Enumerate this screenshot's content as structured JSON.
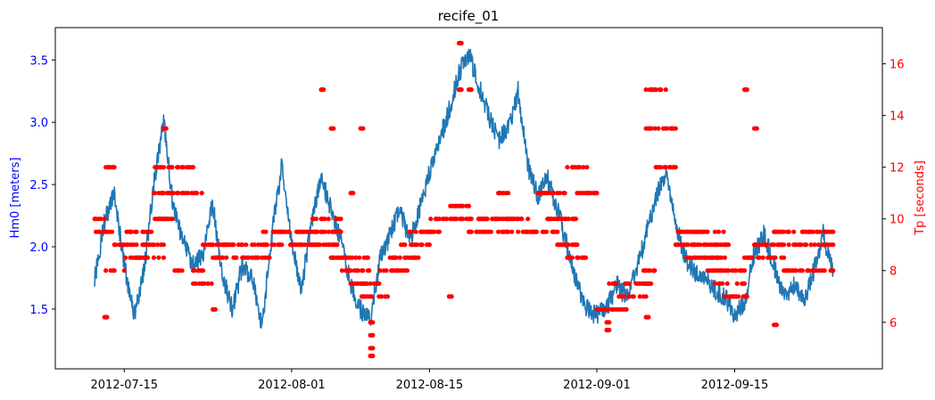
{
  "chart_data": {
    "type": "line",
    "title": "recife_01",
    "x_ticks": [
      "2012-07-15",
      "2012-08-01",
      "2012-08-15",
      "2012-09-01",
      "2012-09-15"
    ],
    "x_range": [
      "2012-07-08",
      "2012-09-30"
    ],
    "left_axis": {
      "label": "Hm0 [meters]",
      "color": "#0000ff",
      "ticks": [
        "1.5",
        "2.0",
        "2.5",
        "3.0",
        "3.5"
      ],
      "range": [
        1.02,
        3.76
      ]
    },
    "right_axis": {
      "label": "Tp [seconds]",
      "color": "#ff0000",
      "ticks": [
        "6",
        "8",
        "10",
        "12",
        "14",
        "16"
      ],
      "range": [
        4.2,
        17.4
      ]
    },
    "series": [
      {
        "axis": "left",
        "style": "line",
        "color": "#1f77b4",
        "points": [
          [
            "2012-07-12",
            1.75
          ],
          [
            "2012-07-13",
            2.2
          ],
          [
            "2012-07-14",
            2.45
          ],
          [
            "2012-07-15",
            1.85
          ],
          [
            "2012-07-16",
            1.45
          ],
          [
            "2012-07-17",
            1.8
          ],
          [
            "2012-07-18",
            2.5
          ],
          [
            "2012-07-19",
            3.0
          ],
          [
            "2012-07-20",
            2.3
          ],
          [
            "2012-07-21",
            2.05
          ],
          [
            "2012-07-22",
            1.85
          ],
          [
            "2012-07-23",
            1.95
          ],
          [
            "2012-07-24",
            2.35
          ],
          [
            "2012-07-25",
            1.75
          ],
          [
            "2012-07-26",
            1.5
          ],
          [
            "2012-07-27",
            1.85
          ],
          [
            "2012-07-28",
            1.75
          ],
          [
            "2012-07-29",
            1.35
          ],
          [
            "2012-07-30",
            2.1
          ],
          [
            "2012-07-31",
            2.65
          ],
          [
            "2012-08-01",
            2.05
          ],
          [
            "2012-08-02",
            1.65
          ],
          [
            "2012-08-03",
            2.2
          ],
          [
            "2012-08-04",
            2.55
          ],
          [
            "2012-08-05",
            2.3
          ],
          [
            "2012-08-06",
            2.05
          ],
          [
            "2012-08-07",
            1.7
          ],
          [
            "2012-08-08",
            1.5
          ],
          [
            "2012-08-09",
            1.4
          ],
          [
            "2012-08-10",
            1.9
          ],
          [
            "2012-08-11",
            2.1
          ],
          [
            "2012-08-12",
            2.3
          ],
          [
            "2012-08-13",
            2.05
          ],
          [
            "2012-08-14",
            2.3
          ],
          [
            "2012-08-15",
            2.6
          ],
          [
            "2012-08-16",
            2.85
          ],
          [
            "2012-08-17",
            3.1
          ],
          [
            "2012-08-18",
            3.4
          ],
          [
            "2012-08-19",
            3.55
          ],
          [
            "2012-08-20",
            3.3
          ],
          [
            "2012-08-21",
            3.05
          ],
          [
            "2012-08-22",
            2.85
          ],
          [
            "2012-08-23",
            2.95
          ],
          [
            "2012-08-24",
            3.25
          ],
          [
            "2012-08-25",
            2.65
          ],
          [
            "2012-08-26",
            2.4
          ],
          [
            "2012-08-27",
            2.55
          ],
          [
            "2012-08-28",
            2.3
          ],
          [
            "2012-08-29",
            2.0
          ],
          [
            "2012-08-30",
            1.7
          ],
          [
            "2012-08-31",
            1.5
          ],
          [
            "2012-09-01",
            1.45
          ],
          [
            "2012-09-02",
            1.5
          ],
          [
            "2012-09-03",
            1.7
          ],
          [
            "2012-09-04",
            1.6
          ],
          [
            "2012-09-05",
            1.8
          ],
          [
            "2012-09-06",
            2.1
          ],
          [
            "2012-09-07",
            2.4
          ],
          [
            "2012-09-08",
            2.6
          ],
          [
            "2012-09-09",
            2.2
          ],
          [
            "2012-09-10",
            1.9
          ],
          [
            "2012-09-11",
            1.8
          ],
          [
            "2012-09-12",
            1.75
          ],
          [
            "2012-09-13",
            1.65
          ],
          [
            "2012-09-14",
            1.6
          ],
          [
            "2012-09-15",
            1.45
          ],
          [
            "2012-09-16",
            1.55
          ],
          [
            "2012-09-17",
            1.95
          ],
          [
            "2012-09-18",
            2.1
          ],
          [
            "2012-09-19",
            1.85
          ],
          [
            "2012-09-20",
            1.6
          ],
          [
            "2012-09-21",
            1.7
          ],
          [
            "2012-09-22",
            1.55
          ],
          [
            "2012-09-23",
            1.8
          ],
          [
            "2012-09-24",
            2.1
          ],
          [
            "2012-09-25",
            1.8
          ]
        ]
      },
      {
        "axis": "right",
        "style": "scatter",
        "color": "#ff0000",
        "runs": [
          [
            "2012-07-12",
            "2012-07-14",
            9.5
          ],
          [
            "2012-07-12",
            "2012-07-13",
            10.0
          ],
          [
            "2012-07-13",
            "2012-07-15",
            8.0
          ],
          [
            "2012-07-13",
            "2012-07-14",
            12.0
          ],
          [
            "2012-07-14",
            "2012-07-19",
            9.0
          ],
          [
            "2012-07-15",
            "2012-07-19",
            8.5
          ],
          [
            "2012-07-15",
            "2012-07-18",
            9.5
          ],
          [
            "2012-07-18",
            "2012-07-23",
            11.0
          ],
          [
            "2012-07-18",
            "2012-07-22",
            12.0
          ],
          [
            "2012-07-18",
            "2012-07-20",
            10.0
          ],
          [
            "2012-07-20",
            "2012-07-23",
            8.0
          ],
          [
            "2012-07-22",
            "2012-07-24",
            7.5
          ],
          [
            "2012-07-23",
            "2012-07-26",
            9.0
          ],
          [
            "2012-07-24",
            "2012-07-30",
            8.5
          ],
          [
            "2012-07-25",
            "2012-08-06",
            9.0
          ],
          [
            "2012-07-29",
            "2012-08-06",
            9.5
          ],
          [
            "2012-08-03",
            "2012-08-06",
            10.0
          ],
          [
            "2012-08-05",
            "2012-08-09",
            8.5
          ],
          [
            "2012-08-06",
            "2012-08-09",
            8.0
          ],
          [
            "2012-08-07",
            "2012-08-10",
            7.5
          ],
          [
            "2012-08-08",
            "2012-08-11",
            7.0
          ],
          [
            "2012-08-10",
            "2012-08-13",
            8.0
          ],
          [
            "2012-08-11",
            "2012-08-14",
            8.5
          ],
          [
            "2012-08-12",
            "2012-08-15",
            9.0
          ],
          [
            "2012-08-13",
            "2012-08-16",
            9.5
          ],
          [
            "2012-08-15",
            "2012-08-20",
            10.0
          ],
          [
            "2012-08-17",
            "2012-08-19",
            10.5
          ],
          [
            "2012-08-19",
            "2012-08-24",
            9.5
          ],
          [
            "2012-08-20",
            "2012-08-25",
            10.0
          ],
          [
            "2012-08-22",
            "2012-08-23",
            11.0
          ],
          [
            "2012-08-24",
            "2012-08-28",
            9.5
          ],
          [
            "2012-08-26",
            "2012-08-29",
            11.0
          ],
          [
            "2012-08-27",
            "2012-08-30",
            10.0
          ],
          [
            "2012-08-28",
            "2012-08-30",
            9.0
          ],
          [
            "2012-08-29",
            "2012-08-31",
            12.0
          ],
          [
            "2012-08-29",
            "2012-08-31",
            8.5
          ],
          [
            "2012-08-30",
            "2012-09-01",
            11.0
          ],
          [
            "2012-09-01",
            "2012-09-04",
            6.5
          ],
          [
            "2012-09-02",
            "2012-09-04",
            7.5
          ],
          [
            "2012-09-03",
            "2012-09-06",
            7.0
          ],
          [
            "2012-09-04",
            "2012-09-07",
            7.5
          ],
          [
            "2012-09-05",
            "2012-09-07",
            8.0
          ],
          [
            "2012-09-06",
            "2012-09-08",
            15.0
          ],
          [
            "2012-09-06",
            "2012-09-09",
            13.5
          ],
          [
            "2012-09-07",
            "2012-09-09",
            12.0
          ],
          [
            "2012-09-09",
            "2012-09-14",
            9.5
          ],
          [
            "2012-09-09",
            "2012-09-15",
            9.0
          ],
          [
            "2012-09-10",
            "2012-09-14",
            8.5
          ],
          [
            "2012-09-12",
            "2012-09-16",
            8.0
          ],
          [
            "2012-09-13",
            "2012-09-16",
            7.5
          ],
          [
            "2012-09-14",
            "2012-09-17",
            7.0
          ],
          [
            "2012-09-16",
            "2012-09-20",
            8.5
          ],
          [
            "2012-09-17",
            "2012-09-25",
            9.0
          ],
          [
            "2012-09-19",
            "2012-09-25",
            9.5
          ],
          [
            "2012-09-20",
            "2012-09-25",
            8.0
          ]
        ],
        "points": [
          [
            "2012-07-13",
            6.2
          ],
          [
            "2012-07-19",
            13.5
          ],
          [
            "2012-07-24",
            6.5
          ],
          [
            "2012-08-04",
            15.0
          ],
          [
            "2012-08-05",
            13.5
          ],
          [
            "2012-08-07",
            11.0
          ],
          [
            "2012-08-08",
            13.5
          ],
          [
            "2012-08-09",
            4.7
          ],
          [
            "2012-08-09",
            5.0
          ],
          [
            "2012-08-09",
            5.5
          ],
          [
            "2012-08-09",
            6.0
          ],
          [
            "2012-08-18",
            16.8
          ],
          [
            "2012-08-18",
            15.0
          ],
          [
            "2012-08-19",
            15.0
          ],
          [
            "2012-08-17",
            7.0
          ],
          [
            "2012-09-02",
            5.7
          ],
          [
            "2012-09-02",
            6.0
          ],
          [
            "2012-09-06",
            6.2
          ],
          [
            "2012-09-16",
            15.0
          ],
          [
            "2012-09-17",
            13.5
          ],
          [
            "2012-09-19",
            5.9
          ]
        ]
      }
    ]
  }
}
